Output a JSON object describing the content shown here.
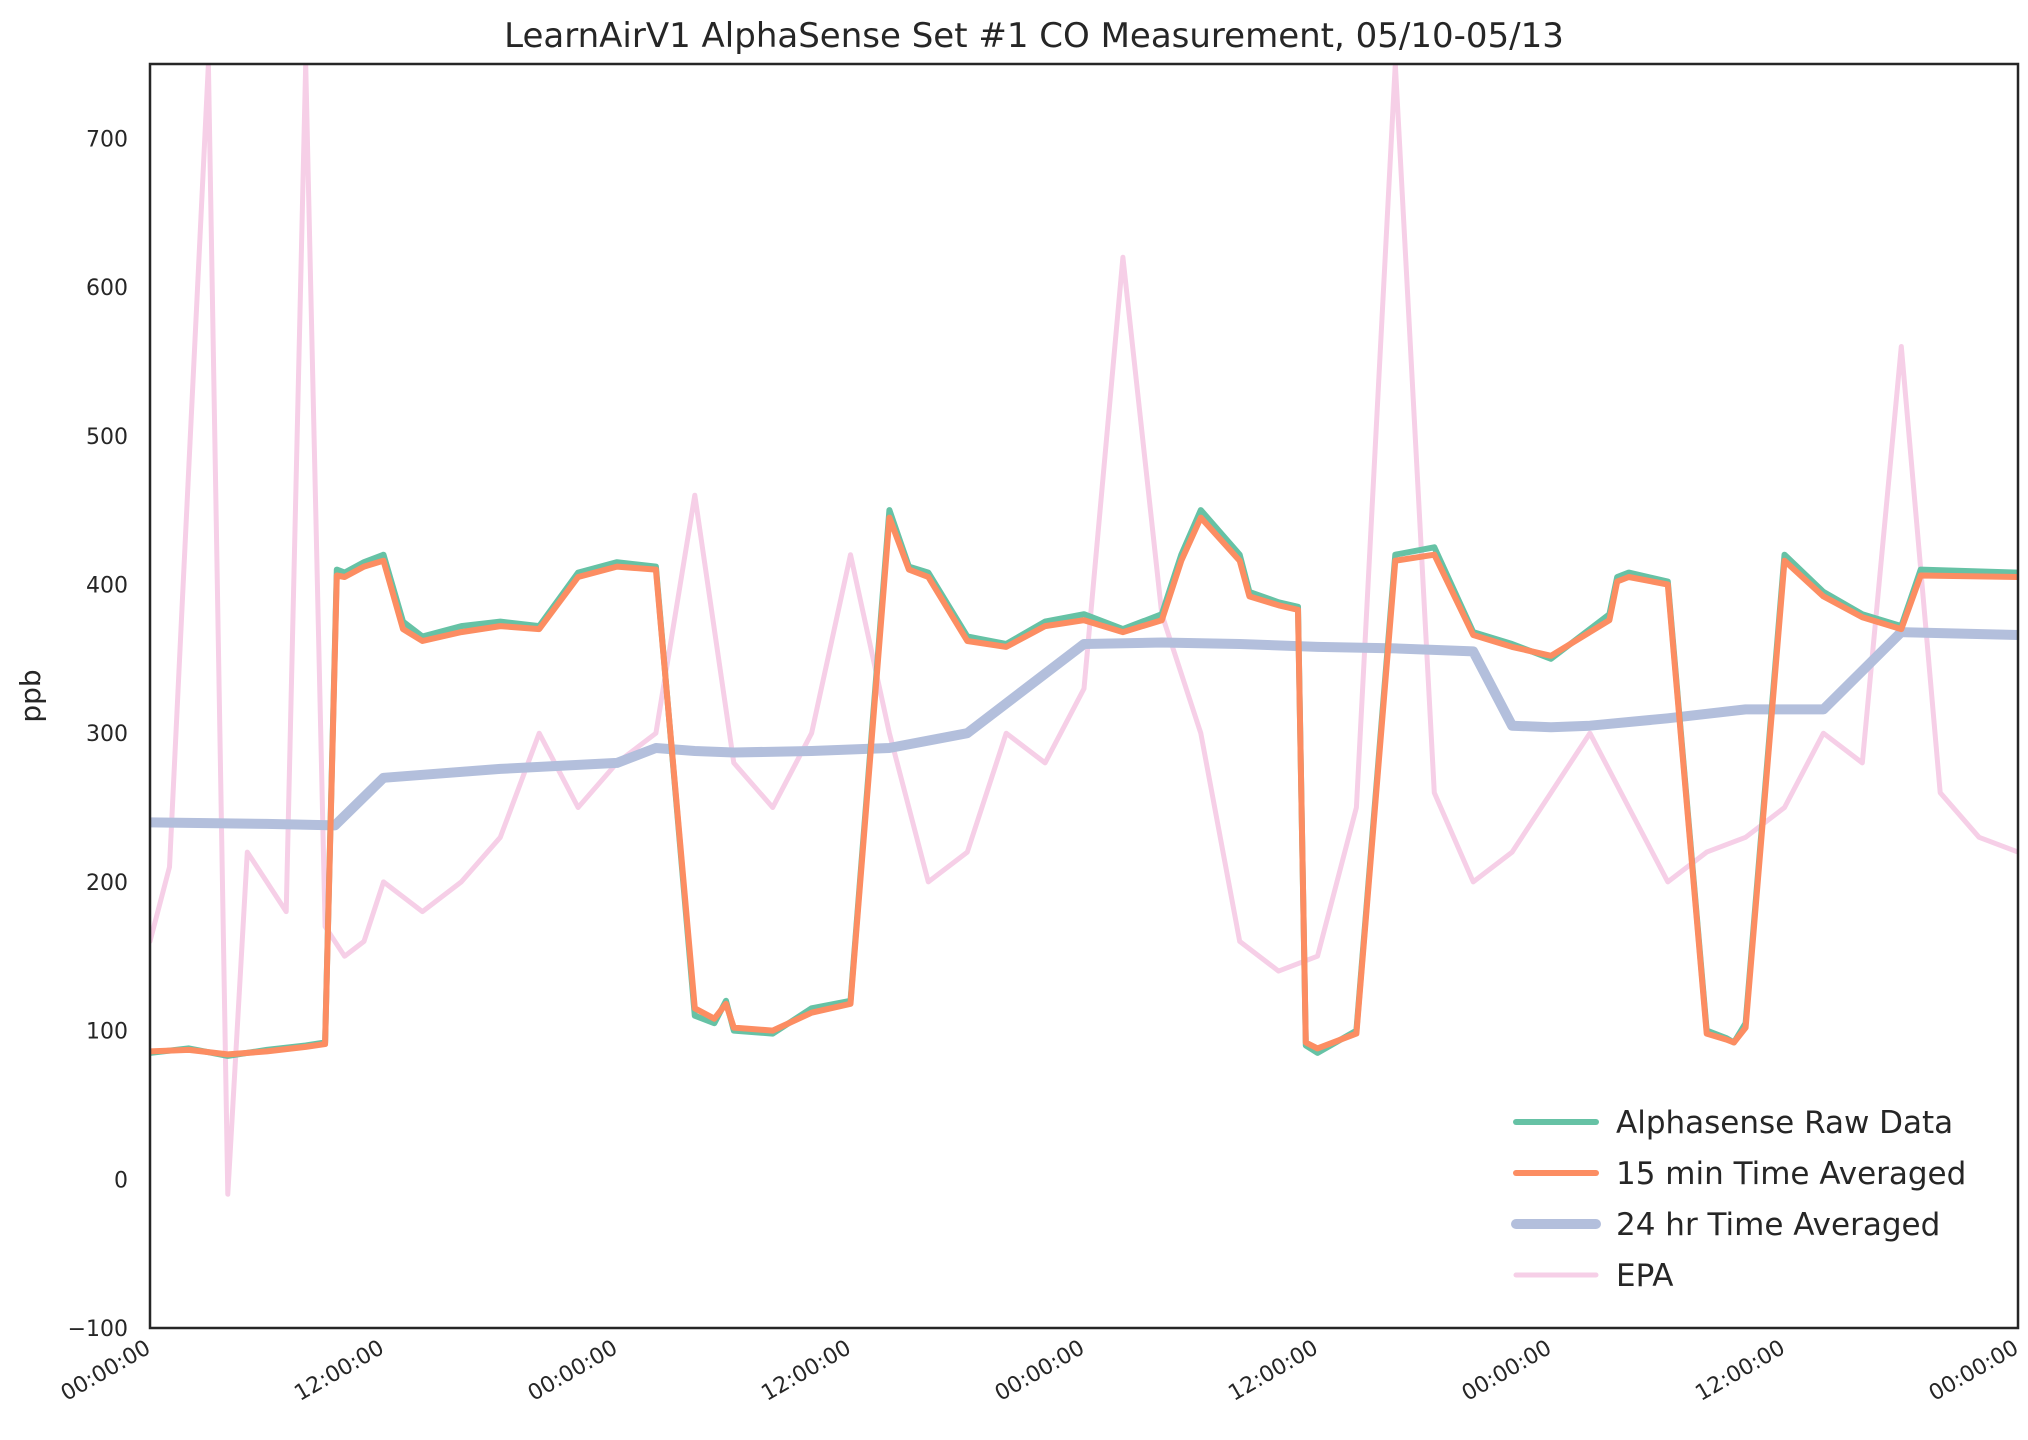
{
  "chart_data": {
    "type": "line",
    "title": "LearnAirV1 AlphaSense Set #1 CO Measurement, 05/10-05/13",
    "xlabel": "",
    "ylabel": "ppb",
    "xlim": [
      "05/10 00:00:00",
      "05/14 00:00:00"
    ],
    "ylim": [
      -100,
      750
    ],
    "x_ticks": [
      "00:00:00",
      "12:00:00",
      "00:00:00",
      "12:00:00",
      "00:00:00",
      "12:00:00",
      "00:00:00",
      "12:00:00",
      "00:00:00"
    ],
    "y_ticks": [
      -100,
      0,
      100,
      200,
      300,
      400,
      500,
      600,
      700
    ],
    "grid": false,
    "legend_position": "bottom-right",
    "series": [
      {
        "name": "Alphasense Raw Data",
        "color": "#66c2a5",
        "x_hours": [
          0,
          2,
          4,
          6,
          8,
          9,
          9.6,
          10,
          11,
          12,
          13,
          14,
          16,
          18,
          20,
          22,
          24,
          26,
          28,
          29,
          29.6,
          30,
          32,
          34,
          36,
          38,
          39,
          40,
          42,
          44,
          46,
          48,
          50,
          52,
          53,
          54,
          56,
          56.5,
          58,
          59,
          59.4,
          60,
          62,
          64,
          66,
          68,
          70,
          72,
          74,
          75,
          75.4,
          76,
          78,
          80,
          81,
          81.4,
          82,
          84,
          86,
          88,
          90,
          91,
          96
        ],
        "y": [
          85,
          88,
          83,
          87,
          90,
          92,
          410,
          408,
          415,
          420,
          375,
          365,
          372,
          375,
          372,
          408,
          415,
          412,
          110,
          105,
          120,
          100,
          98,
          115,
          120,
          450,
          412,
          408,
          365,
          360,
          375,
          380,
          370,
          380,
          420,
          450,
          420,
          395,
          388,
          385,
          90,
          85,
          100,
          420,
          425,
          368,
          360,
          350,
          370,
          380,
          405,
          408,
          402,
          100,
          95,
          92,
          105,
          420,
          395,
          380,
          372,
          410,
          408
        ]
      },
      {
        "name": "15 min Time Averaged",
        "color": "#fc8d62",
        "x_hours": [
          0,
          2,
          4,
          6,
          8,
          9,
          9.6,
          10,
          11,
          12,
          13,
          14,
          16,
          18,
          20,
          22,
          24,
          26,
          28,
          29,
          29.6,
          30,
          32,
          34,
          36,
          38,
          39,
          40,
          42,
          44,
          46,
          48,
          50,
          52,
          53,
          54,
          56,
          56.5,
          58,
          59,
          59.4,
          60,
          62,
          64,
          66,
          68,
          70,
          72,
          74,
          75,
          75.4,
          76,
          78,
          80,
          81,
          81.4,
          82,
          84,
          86,
          88,
          90,
          91,
          96
        ],
        "y": [
          86,
          87,
          84,
          86,
          89,
          91,
          406,
          405,
          412,
          416,
          370,
          362,
          368,
          372,
          370,
          405,
          412,
          410,
          115,
          108,
          118,
          102,
          100,
          112,
          118,
          445,
          410,
          405,
          362,
          358,
          372,
          376,
          368,
          376,
          416,
          445,
          416,
          392,
          386,
          383,
          92,
          88,
          98,
          416,
          420,
          366,
          358,
          352,
          368,
          376,
          402,
          405,
          400,
          98,
          94,
          92,
          102,
          416,
          392,
          378,
          370,
          406,
          405
        ]
      },
      {
        "name": "24 hr Time Averaged",
        "color": "#b3bfdc",
        "x_hours": [
          0,
          6,
          9.5,
          12,
          18,
          24,
          26,
          28,
          30,
          34,
          38,
          42,
          48,
          52,
          56,
          60,
          64,
          68,
          70,
          72,
          74,
          78,
          82,
          86,
          90,
          96
        ],
        "y": [
          240,
          239,
          238,
          270,
          276,
          280,
          290,
          288,
          287,
          288,
          290,
          300,
          360,
          361,
          360,
          358,
          357,
          355,
          305,
          304,
          305,
          310,
          316,
          316,
          368,
          366
        ]
      },
      {
        "name": "EPA",
        "color": "#f6cfe7",
        "x_hours": [
          0,
          1,
          2,
          3,
          4,
          5,
          6,
          7,
          8,
          9,
          10,
          11,
          12,
          14,
          16,
          18,
          20,
          22,
          24,
          26,
          28,
          30,
          32,
          34,
          36,
          38,
          40,
          42,
          44,
          46,
          48,
          50,
          52,
          54,
          56,
          58,
          60,
          62,
          64,
          66,
          68,
          70,
          72,
          74,
          76,
          78,
          80,
          82,
          84,
          86,
          88,
          90,
          92,
          94,
          96
        ],
        "y": [
          160,
          210,
          480,
          750,
          -10,
          220,
          200,
          180,
          750,
          170,
          150,
          160,
          200,
          180,
          200,
          230,
          300,
          250,
          280,
          300,
          460,
          280,
          250,
          300,
          420,
          300,
          200,
          220,
          300,
          280,
          330,
          620,
          380,
          300,
          160,
          140,
          150,
          250,
          750,
          260,
          200,
          220,
          260,
          300,
          250,
          200,
          220,
          230,
          250,
          300,
          280,
          560,
          260,
          230,
          220
        ]
      }
    ]
  }
}
